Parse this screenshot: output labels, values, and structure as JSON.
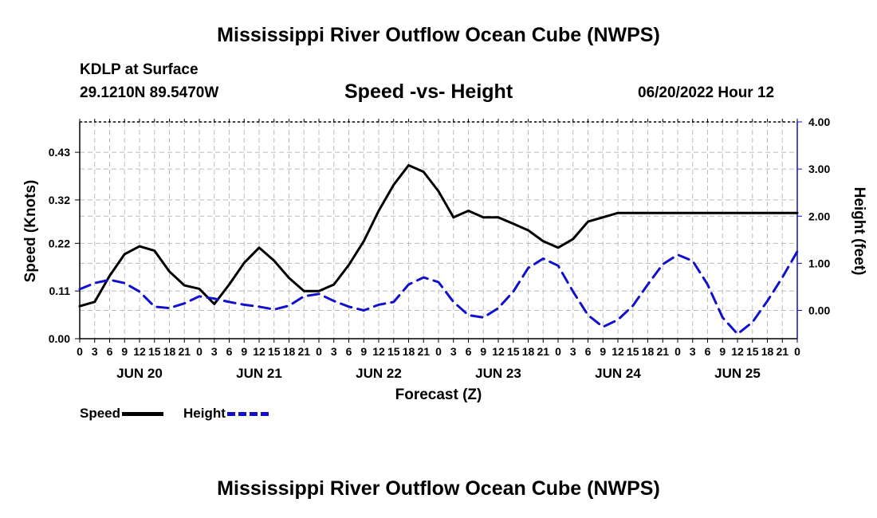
{
  "header": {
    "title": "Mississippi River Outflow Ocean Cube (NWPS)",
    "station": "KDLP at Surface",
    "coords": "29.1210N  89.5470W",
    "chart_title": "Speed -vs- Height",
    "datetime": "06/20/2022 Hour 12"
  },
  "footer": {
    "title": "Mississippi River Outflow Ocean Cube (NWPS)"
  },
  "legend": {
    "speed_label": "Speed",
    "height_label": "Height",
    "speed_color": "#000000",
    "height_color": "#1111cc"
  },
  "chart_data": {
    "type": "line",
    "xlabel": "Forecast (Z)",
    "ylabel": "Speed (Knots)",
    "ylabel_right": "Height (feet)",
    "x_range_hours": [
      0,
      144
    ],
    "x_tick_step_hours": 3,
    "x_tick_labels": [
      "0",
      "3",
      "6",
      "9",
      "12",
      "15",
      "18",
      "21",
      "0",
      "3",
      "6",
      "9",
      "12",
      "15",
      "18",
      "21",
      "0",
      "3",
      "6",
      "9",
      "12",
      "15",
      "18",
      "21",
      "0",
      "3",
      "6",
      "9",
      "12",
      "15",
      "18",
      "21",
      "0",
      "3",
      "6",
      "9",
      "12",
      "15",
      "18",
      "21",
      "0",
      "3",
      "6",
      "9",
      "12",
      "15",
      "18",
      "21",
      "0"
    ],
    "day_labels": [
      {
        "label": "JUN 20",
        "hour": 12
      },
      {
        "label": "JUN 21",
        "hour": 36
      },
      {
        "label": "JUN 22",
        "hour": 60
      },
      {
        "label": "JUN 23",
        "hour": 84
      },
      {
        "label": "JUN 24",
        "hour": 108
      },
      {
        "label": "JUN 25",
        "hour": 132
      }
    ],
    "y_left": {
      "range": [
        0,
        0.5
      ],
      "ticks": [
        0.0,
        0.11,
        0.22,
        0.32,
        0.43
      ],
      "tick_labels": [
        "0.00",
        "0.11",
        "0.22",
        "0.32",
        "0.43"
      ]
    },
    "y_right": {
      "range": [
        -0.6,
        4.0
      ],
      "ticks": [
        0.0,
        1.0,
        2.0,
        3.0,
        4.0
      ],
      "tick_labels": [
        "0.00",
        "1.00",
        "2.00",
        "3.00",
        "4.00"
      ]
    },
    "series": [
      {
        "name": "Speed",
        "axis": "left",
        "style": "solid",
        "x": [
          0,
          3,
          6,
          9,
          12,
          15,
          18,
          21,
          24,
          27,
          30,
          33,
          36,
          39,
          42,
          45,
          48,
          51,
          54,
          57,
          60,
          63,
          66,
          69,
          72,
          75,
          78,
          81,
          84,
          87,
          90,
          93,
          96,
          99,
          102,
          105,
          108,
          111,
          114,
          117,
          120,
          123,
          126,
          129,
          132,
          135,
          138,
          141,
          144
        ],
        "values": [
          0.075,
          0.085,
          0.145,
          0.195,
          0.213,
          0.203,
          0.155,
          0.123,
          0.115,
          0.08,
          0.125,
          0.175,
          0.21,
          0.18,
          0.14,
          0.11,
          0.11,
          0.125,
          0.17,
          0.225,
          0.295,
          0.355,
          0.4,
          0.385,
          0.34,
          0.28,
          0.295,
          0.28,
          0.28,
          0.265,
          0.25,
          0.225,
          0.21,
          0.23,
          0.27,
          0.28,
          0.29,
          0.29,
          0.29,
          0.29,
          0.29,
          0.29,
          0.29,
          0.29,
          0.29,
          0.29,
          0.29,
          0.29,
          0.29
        ]
      },
      {
        "name": "Height",
        "axis": "right",
        "style": "dashed",
        "x": [
          0,
          3,
          6,
          9,
          12,
          15,
          18,
          21,
          24,
          27,
          30,
          33,
          36,
          39,
          42,
          45,
          48,
          51,
          54,
          57,
          60,
          63,
          66,
          69,
          72,
          75,
          78,
          81,
          84,
          87,
          90,
          93,
          96,
          99,
          102,
          105,
          108,
          111,
          114,
          117,
          120,
          123,
          126,
          129,
          132,
          135,
          138,
          141,
          144
        ],
        "values": [
          0.45,
          0.58,
          0.65,
          0.58,
          0.4,
          0.08,
          0.05,
          0.15,
          0.3,
          0.25,
          0.18,
          0.12,
          0.08,
          0.02,
          0.1,
          0.3,
          0.35,
          0.2,
          0.08,
          0.0,
          0.12,
          0.18,
          0.55,
          0.7,
          0.6,
          0.18,
          -0.1,
          -0.15,
          0.05,
          0.4,
          0.9,
          1.1,
          0.95,
          0.4,
          -0.1,
          -0.35,
          -0.2,
          0.1,
          0.55,
          0.98,
          1.18,
          1.05,
          0.55,
          -0.15,
          -0.5,
          -0.25,
          0.2,
          0.7,
          1.25
        ]
      }
    ]
  }
}
